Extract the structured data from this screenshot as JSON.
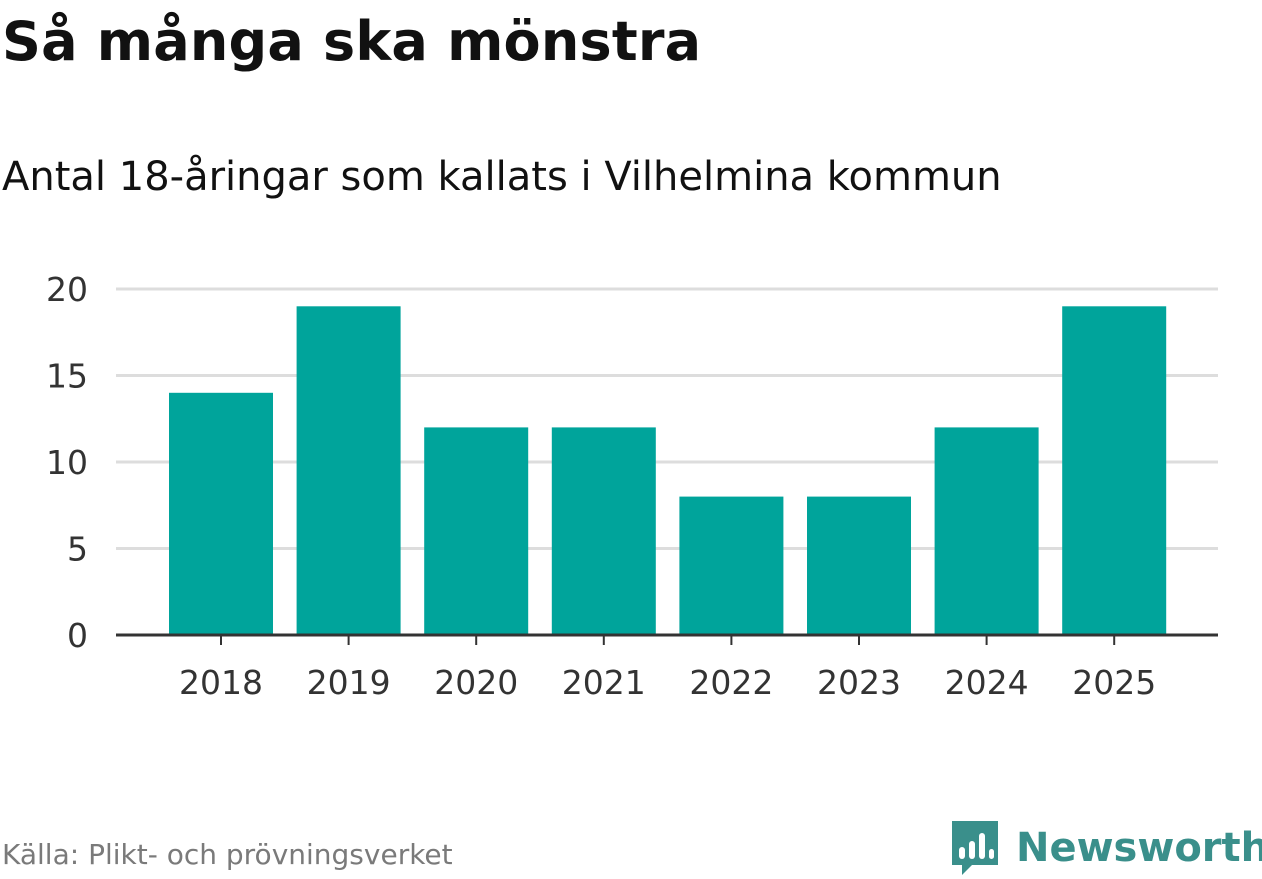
{
  "header": {
    "title": "Så många ska mönstra",
    "subtitle": "Antal 18-åringar som kallats i Vilhelmina kommun"
  },
  "footer": {
    "source": "Källa: Plikt- och prövningsverket",
    "brand": "Newsworthy",
    "brand_icon": "newsworthy-logo-icon"
  },
  "colors": {
    "bar": "#00a49b",
    "grid": "#dddddd",
    "axis": "#333333",
    "brand": "#3a8f8b"
  },
  "chart_data": {
    "type": "bar",
    "title": "Så många ska mönstra",
    "subtitle": "Antal 18-åringar som kallats i Vilhelmina kommun",
    "categories": [
      "2018",
      "2019",
      "2020",
      "2021",
      "2022",
      "2023",
      "2024",
      "2025"
    ],
    "values": [
      14,
      19,
      12,
      12,
      8,
      8,
      12,
      19
    ],
    "xlabel": "",
    "ylabel": "",
    "ylim": [
      0,
      20
    ],
    "yticks": [
      0,
      5,
      10,
      15,
      20
    ],
    "grid": true,
    "legend": "none"
  }
}
